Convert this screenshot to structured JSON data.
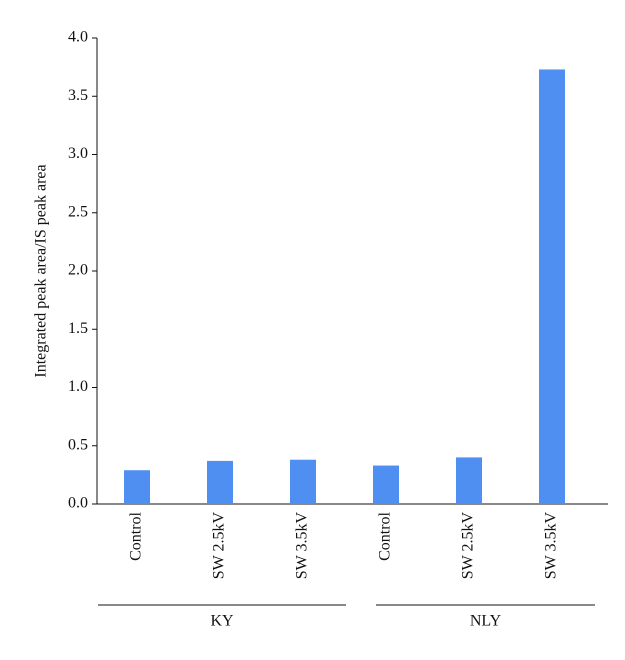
{
  "chart_data": {
    "type": "bar",
    "y_label": "Integrated peak area/IS peak area",
    "categories": [
      "Control",
      "SW 2.5kV",
      "SW 3.5kV",
      "Control",
      "SW 2.5kV",
      "SW 3.5kV"
    ],
    "groups": [
      "KY",
      "NLY"
    ],
    "values": [
      0.29,
      0.37,
      0.38,
      0.33,
      0.4,
      3.73
    ],
    "color": "#4f8ff2",
    "ylim": [
      0,
      4.0
    ],
    "yticks": [
      {
        "value": 0,
        "label": "0.0"
      },
      {
        "value": 0.5,
        "label": "0.5"
      },
      {
        "value": 1,
        "label": "1.0"
      },
      {
        "value": 1.5,
        "label": "1.5"
      },
      {
        "value": 2,
        "label": "2.0"
      },
      {
        "value": 2.5,
        "label": "2.5"
      },
      {
        "value": 3,
        "label": "3.0"
      },
      {
        "value": 3.5,
        "label": "3.5"
      },
      {
        "value": 4,
        "label": "4.0"
      }
    ],
    "grid": false
  }
}
